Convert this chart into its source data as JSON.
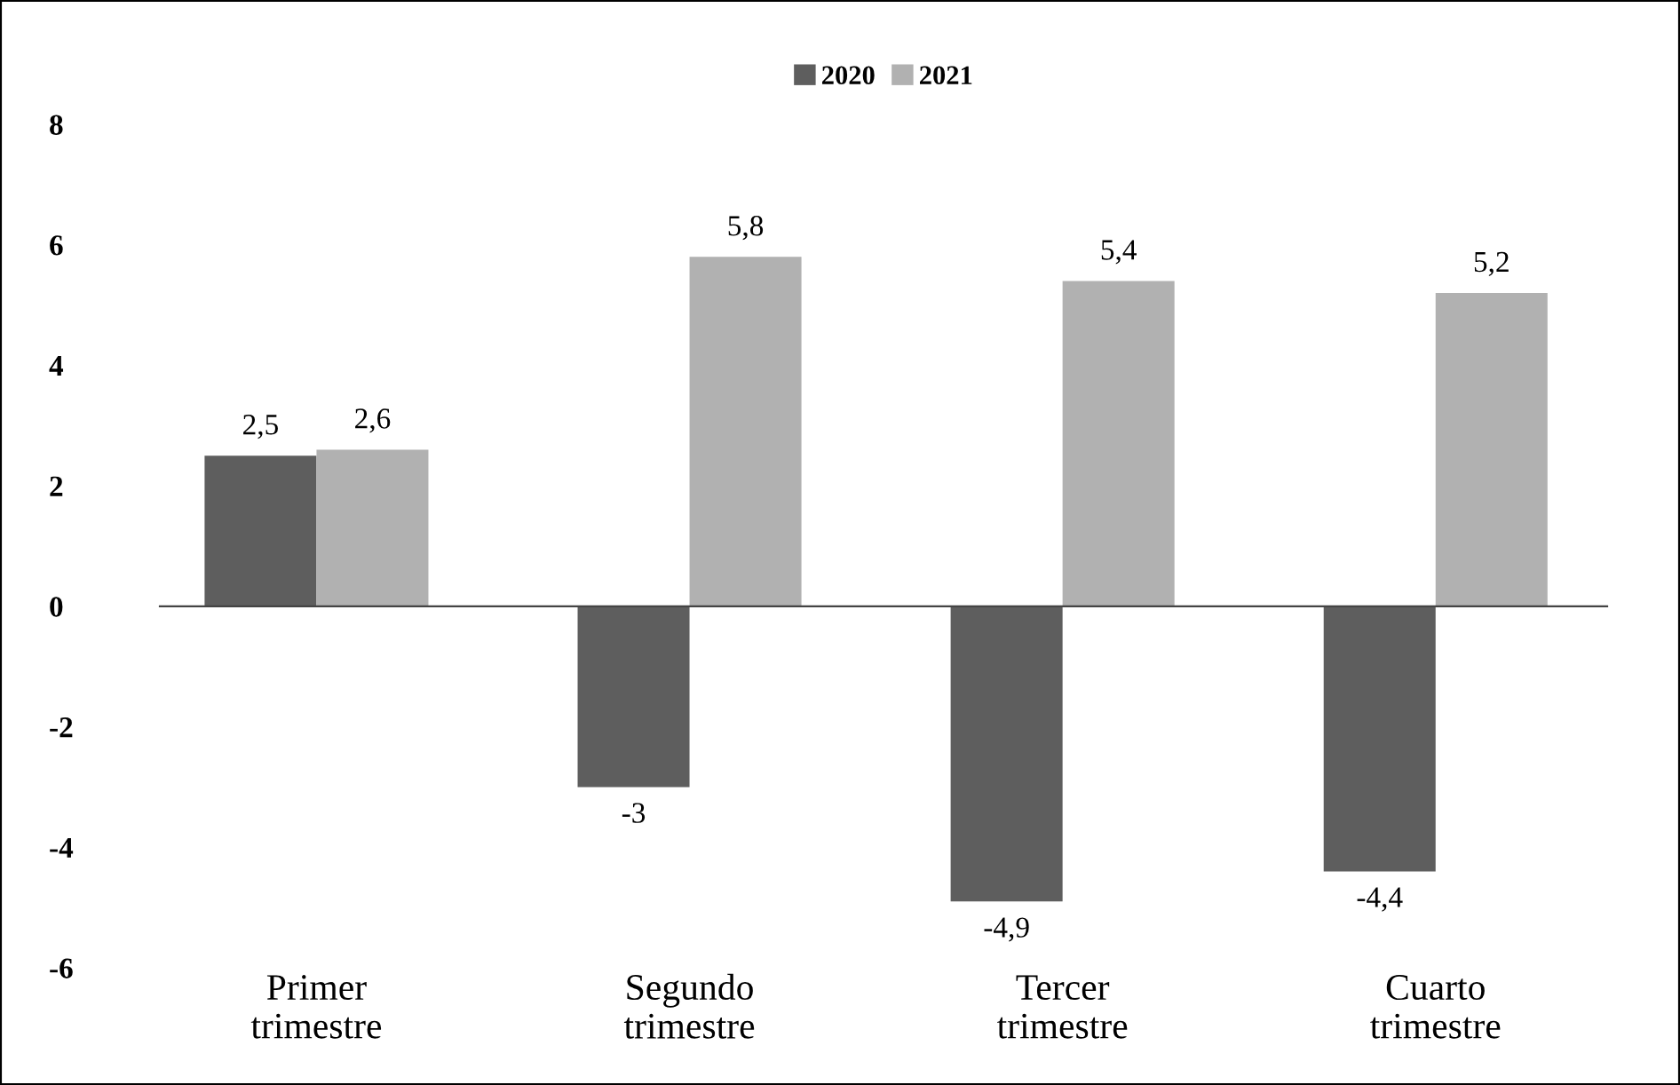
{
  "chart_data": {
    "type": "bar",
    "categories": [
      "Primer\ntrimestre",
      "Segundo\ntrimestre",
      "Tercer\ntrimestre",
      "Cuarto\ntrimestre"
    ],
    "series": [
      {
        "name": "2020",
        "color": "#5e5e5e",
        "values": [
          2.5,
          -3,
          -4.9,
          -4.4
        ],
        "value_labels": [
          "2,5",
          "-3",
          "-4,9",
          "-4,4"
        ]
      },
      {
        "name": "2021",
        "color": "#b1b1b1",
        "values": [
          2.6,
          5.8,
          5.4,
          5.2
        ],
        "value_labels": [
          "2,6",
          "5,8",
          "5,4",
          "5,2"
        ]
      }
    ],
    "ylim": [
      -6,
      8
    ],
    "yticks": [
      -6,
      -4,
      -2,
      0,
      2,
      4,
      6,
      8
    ],
    "legend": "top"
  }
}
